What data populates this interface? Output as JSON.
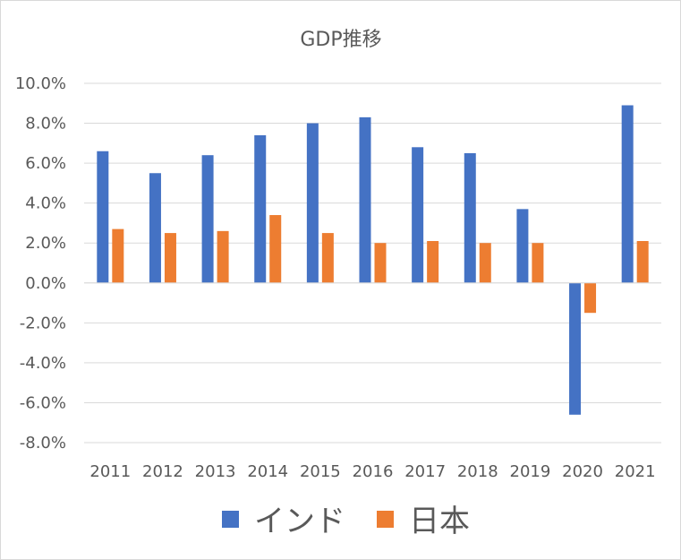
{
  "chart_data": {
    "type": "bar",
    "title": "GDP推移",
    "categories": [
      "2011",
      "2012",
      "2013",
      "2014",
      "2015",
      "2016",
      "2017",
      "2018",
      "2019",
      "2020",
      "2021"
    ],
    "series": [
      {
        "name": "インド",
        "color": "#4472c4",
        "values": [
          6.6,
          5.5,
          6.4,
          7.4,
          8.0,
          8.3,
          6.8,
          6.5,
          3.7,
          -6.6,
          8.9
        ]
      },
      {
        "name": "日本",
        "color": "#ed7d31",
        "values": [
          2.7,
          2.5,
          2.6,
          3.4,
          2.5,
          2.0,
          2.1,
          2.0,
          2.0,
          -1.5,
          2.1
        ]
      }
    ],
    "ylim": [
      -8.0,
      10.0
    ],
    "yticks": [
      "10.0%",
      "8.0%",
      "6.0%",
      "4.0%",
      "2.0%",
      "0.0%",
      "-2.0%",
      "-4.0%",
      "-6.0%",
      "-8.0%"
    ],
    "ytick_values": [
      10,
      8,
      6,
      4,
      2,
      0,
      -2,
      -4,
      -6,
      -8
    ],
    "grid": true,
    "legend_position": "bottom",
    "xlabel": "",
    "ylabel": ""
  }
}
